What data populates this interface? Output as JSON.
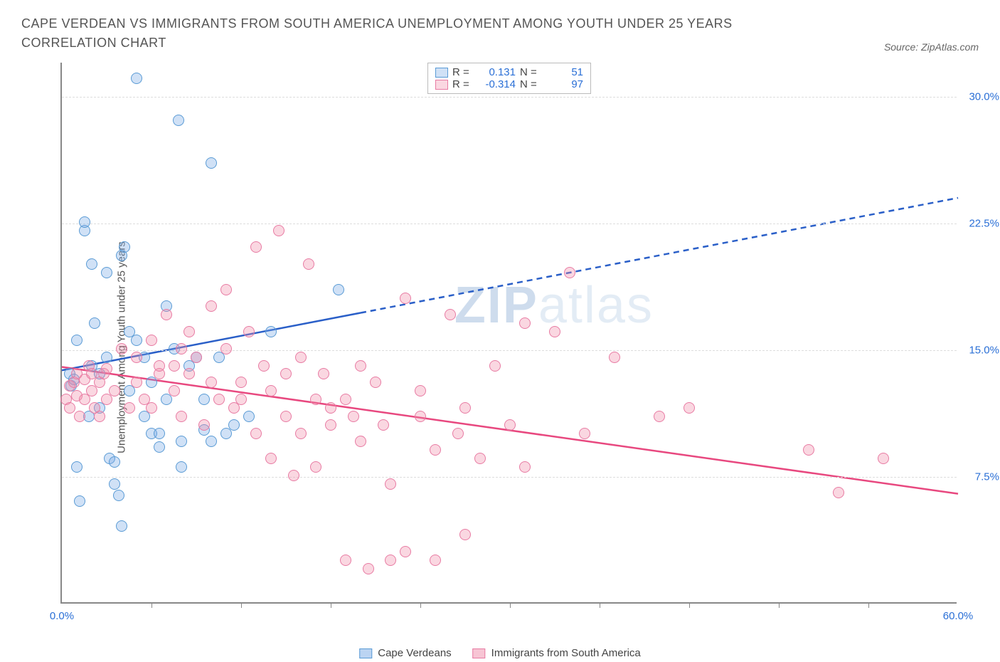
{
  "title": "CAPE VERDEAN VS IMMIGRANTS FROM SOUTH AMERICA UNEMPLOYMENT AMONG YOUTH UNDER 25 YEARS CORRELATION CHART",
  "source": "Source: ZipAtlas.com",
  "ylabel": "Unemployment Among Youth under 25 years",
  "chart": {
    "type": "scatter",
    "background_color": "#ffffff",
    "grid_color": "#dddddd",
    "axis_color": "#888888",
    "xlim": [
      0,
      60
    ],
    "ylim": [
      0,
      32
    ],
    "xticks_minor": [
      6,
      12,
      18,
      24,
      30,
      36,
      42,
      48,
      54
    ],
    "xticks_labeled": [
      {
        "v": 0,
        "label": "0.0%"
      },
      {
        "v": 60,
        "label": "60.0%"
      }
    ],
    "yticks": [
      {
        "v": 7.5,
        "label": "7.5%"
      },
      {
        "v": 15.0,
        "label": "15.0%"
      },
      {
        "v": 22.5,
        "label": "22.5%"
      },
      {
        "v": 30.0,
        "label": "30.0%"
      }
    ],
    "marker_radius": 8,
    "series": [
      {
        "name": "Cape Verdeans",
        "color_fill": "rgba(120,170,230,0.35)",
        "color_stroke": "#5a9bd5",
        "trend_color": "#2a5fc8",
        "trend_width": 2.5,
        "trend_solid_xmax": 20,
        "trend": {
          "x1": 0,
          "y1": 13.8,
          "x2": 60,
          "y2": 24.0
        },
        "stats": {
          "R": "0.131",
          "N": "51"
        },
        "points": [
          [
            0.5,
            13.5
          ],
          [
            0.6,
            12.8
          ],
          [
            0.8,
            13.2
          ],
          [
            1.0,
            15.5
          ],
          [
            1.0,
            8.0
          ],
          [
            1.2,
            6.0
          ],
          [
            1.5,
            22.0
          ],
          [
            1.5,
            22.5
          ],
          [
            1.8,
            11.0
          ],
          [
            2.0,
            20.0
          ],
          [
            2.0,
            14.0
          ],
          [
            2.2,
            16.5
          ],
          [
            2.5,
            13.5
          ],
          [
            2.5,
            11.5
          ],
          [
            3.0,
            19.5
          ],
          [
            3.0,
            14.5
          ],
          [
            3.2,
            8.5
          ],
          [
            3.5,
            8.3
          ],
          [
            3.5,
            7.0
          ],
          [
            3.8,
            6.3
          ],
          [
            4.0,
            20.5
          ],
          [
            4.0,
            4.5
          ],
          [
            4.2,
            21.0
          ],
          [
            4.5,
            16.0
          ],
          [
            4.5,
            12.5
          ],
          [
            5.0,
            15.5
          ],
          [
            5.0,
            31.0
          ],
          [
            5.5,
            11.0
          ],
          [
            5.5,
            14.5
          ],
          [
            6.0,
            10.0
          ],
          [
            6.0,
            13.0
          ],
          [
            6.5,
            9.2
          ],
          [
            6.5,
            10.0
          ],
          [
            7.0,
            17.5
          ],
          [
            7.0,
            12.0
          ],
          [
            7.5,
            15.0
          ],
          [
            7.8,
            28.5
          ],
          [
            8.0,
            8.0
          ],
          [
            8.0,
            9.5
          ],
          [
            8.5,
            14.0
          ],
          [
            9.0,
            14.5
          ],
          [
            9.5,
            10.2
          ],
          [
            9.5,
            12.0
          ],
          [
            10.0,
            9.5
          ],
          [
            10.0,
            26.0
          ],
          [
            10.5,
            14.5
          ],
          [
            11.0,
            10.0
          ],
          [
            11.5,
            10.5
          ],
          [
            12.5,
            11.0
          ],
          [
            14.0,
            16.0
          ],
          [
            18.5,
            18.5
          ]
        ]
      },
      {
        "name": "Immigrants from South America",
        "color_fill": "rgba(240,140,170,0.35)",
        "color_stroke": "#e87ba3",
        "trend_color": "#e8487f",
        "trend_width": 2.5,
        "trend_solid_xmax": 60,
        "trend": {
          "x1": 0,
          "y1": 14.0,
          "x2": 60,
          "y2": 6.5
        },
        "stats": {
          "R": "-0.314",
          "N": "97"
        },
        "points": [
          [
            0.3,
            12.0
          ],
          [
            0.5,
            11.5
          ],
          [
            0.5,
            12.8
          ],
          [
            0.8,
            13.0
          ],
          [
            1.0,
            12.2
          ],
          [
            1.0,
            13.5
          ],
          [
            1.2,
            11.0
          ],
          [
            1.5,
            13.2
          ],
          [
            1.5,
            12.0
          ],
          [
            1.8,
            14.0
          ],
          [
            2.0,
            13.5
          ],
          [
            2.0,
            12.5
          ],
          [
            2.2,
            11.5
          ],
          [
            2.5,
            13.0
          ],
          [
            2.5,
            11.0
          ],
          [
            2.8,
            13.5
          ],
          [
            3.0,
            12.0
          ],
          [
            3.0,
            13.8
          ],
          [
            3.5,
            12.5
          ],
          [
            4.0,
            15.0
          ],
          [
            4.5,
            11.5
          ],
          [
            5.0,
            14.5
          ],
          [
            5.0,
            13.0
          ],
          [
            5.5,
            12.0
          ],
          [
            6.0,
            15.5
          ],
          [
            6.0,
            11.5
          ],
          [
            6.5,
            13.5
          ],
          [
            6.5,
            14.0
          ],
          [
            7.0,
            17.0
          ],
          [
            7.5,
            12.5
          ],
          [
            7.5,
            14.0
          ],
          [
            8.0,
            11.0
          ],
          [
            8.0,
            15.0
          ],
          [
            8.5,
            16.0
          ],
          [
            8.5,
            13.5
          ],
          [
            9.0,
            14.5
          ],
          [
            9.5,
            10.5
          ],
          [
            10.0,
            13.0
          ],
          [
            10.0,
            17.5
          ],
          [
            10.5,
            12.0
          ],
          [
            11.0,
            15.0
          ],
          [
            11.0,
            18.5
          ],
          [
            11.5,
            11.5
          ],
          [
            12.0,
            13.0
          ],
          [
            12.0,
            12.0
          ],
          [
            12.5,
            16.0
          ],
          [
            13.0,
            21.0
          ],
          [
            13.0,
            10.0
          ],
          [
            13.5,
            14.0
          ],
          [
            14.0,
            12.5
          ],
          [
            14.0,
            8.5
          ],
          [
            14.5,
            22.0
          ],
          [
            15.0,
            13.5
          ],
          [
            15.0,
            11.0
          ],
          [
            15.5,
            7.5
          ],
          [
            16.0,
            14.5
          ],
          [
            16.0,
            10.0
          ],
          [
            16.5,
            20.0
          ],
          [
            17.0,
            12.0
          ],
          [
            17.0,
            8.0
          ],
          [
            17.5,
            13.5
          ],
          [
            18.0,
            11.5
          ],
          [
            18.0,
            10.5
          ],
          [
            19.0,
            12.0
          ],
          [
            19.0,
            2.5
          ],
          [
            19.5,
            11.0
          ],
          [
            20.0,
            14.0
          ],
          [
            20.0,
            9.5
          ],
          [
            20.5,
            2.0
          ],
          [
            21.0,
            13.0
          ],
          [
            21.5,
            10.5
          ],
          [
            22.0,
            7.0
          ],
          [
            22.0,
            2.5
          ],
          [
            23.0,
            3.0
          ],
          [
            23.0,
            18.0
          ],
          [
            24.0,
            11.0
          ],
          [
            24.0,
            12.5
          ],
          [
            25.0,
            9.0
          ],
          [
            25.0,
            2.5
          ],
          [
            26.0,
            17.0
          ],
          [
            26.5,
            10.0
          ],
          [
            27.0,
            11.5
          ],
          [
            27.0,
            4.0
          ],
          [
            28.0,
            8.5
          ],
          [
            29.0,
            14.0
          ],
          [
            30.0,
            10.5
          ],
          [
            31.0,
            16.5
          ],
          [
            31.0,
            8.0
          ],
          [
            33.0,
            16.0
          ],
          [
            34.0,
            19.5
          ],
          [
            35.0,
            10.0
          ],
          [
            37.0,
            14.5
          ],
          [
            40.0,
            11.0
          ],
          [
            42.0,
            11.5
          ],
          [
            50.0,
            9.0
          ],
          [
            52.0,
            6.5
          ],
          [
            55.0,
            8.5
          ]
        ]
      }
    ]
  },
  "legend_bottom": [
    {
      "swatch_fill": "rgba(120,170,230,0.5)",
      "swatch_stroke": "#5a9bd5",
      "label": "Cape Verdeans"
    },
    {
      "swatch_fill": "rgba(240,140,170,0.5)",
      "swatch_stroke": "#e87ba3",
      "label": "Immigrants from South America"
    }
  ],
  "watermark": {
    "bold": "ZIP",
    "rest": "atlas"
  }
}
